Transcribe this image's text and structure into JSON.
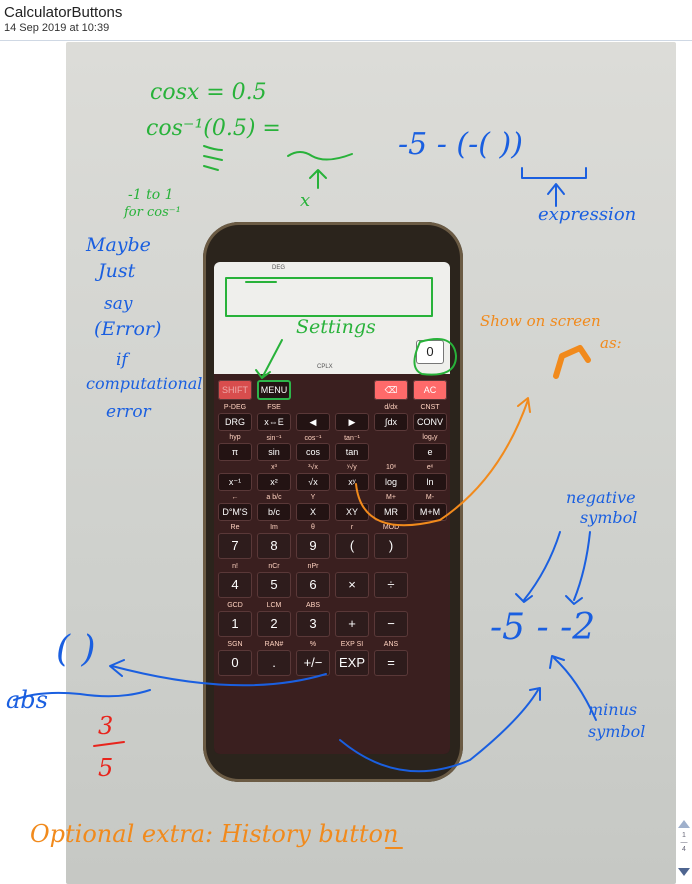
{
  "header": {
    "title": "CalculatorButtons",
    "date": "14 Sep 2019 at 10:39"
  },
  "pager": {
    "current": "1",
    "total": "4"
  },
  "annotations": {
    "cos_eq": "cosx = 0.5",
    "arccos": "cos⁻¹(0.5) =",
    "x_label": "x",
    "range": "-1 to 1",
    "range2": "for cos⁻¹",
    "expr": "-5 - (-(       ))",
    "expression": "expression",
    "maybe": "Maybe",
    "just": "Just",
    "say": "say",
    "error": "(Error)",
    "if": "if",
    "computational": "computational",
    "error2": "error",
    "settings": "Settings",
    "show_on_screen": "Show on screen",
    "as": "as:",
    "negative_symbol": "negative",
    "symbol1": "symbol",
    "neg_expr": "-5 - -2",
    "minus_symbol": "minus",
    "symbol2": "symbol",
    "abs_paren": "(     )",
    "abs": "abs",
    "frac_num": "3",
    "frac_den": "5",
    "optional": "Optional extra: History button"
  },
  "calculator": {
    "deg": "DEG",
    "cplx": "CPLX",
    "display_value": "0",
    "top_row": [
      {
        "label": "SHIFT",
        "style": "shift"
      },
      {
        "label": "MENU",
        "style": "menu"
      },
      {
        "label": "⌫",
        "style": "pink"
      },
      {
        "label": "AC",
        "style": "pink"
      }
    ],
    "rows": [
      {
        "sec": [
          "P-DEG",
          "FSE",
          "",
          "",
          "d/dx",
          "CNST"
        ],
        "keys": [
          "DRG",
          "x⇔E",
          "◀",
          "▶",
          "∫dx",
          "CONV"
        ]
      },
      {
        "sec": [
          "hyp",
          "sin⁻¹",
          "cos⁻¹",
          "tan⁻¹",
          "",
          "logₓy"
        ],
        "keys": [
          "π",
          "sin",
          "cos",
          "tan",
          "",
          "e"
        ]
      },
      {
        "sec": [
          "",
          "x³",
          "³√x",
          "ʸ√y",
          "10ˣ",
          "eˣ"
        ],
        "keys": [
          "x⁻¹",
          "x²",
          "√x",
          "xʸ",
          "log",
          "ln"
        ]
      },
      {
        "sec": [
          "←",
          "a b/c",
          "Y",
          "",
          "M+",
          "M-"
        ],
        "keys": [
          "D°M'S",
          "b/c",
          "X",
          "XY",
          "MR",
          "M+M"
        ]
      },
      {
        "sec": [
          "Re",
          "Im",
          "θ",
          "r",
          "MOD",
          ""
        ],
        "keys": [
          "7",
          "8",
          "9",
          "(",
          ")",
          ""
        ]
      },
      {
        "sec": [
          "n!",
          "nCr",
          "nPr",
          "",
          "",
          ""
        ],
        "keys": [
          "4",
          "5",
          "6",
          "×",
          "÷",
          ""
        ]
      },
      {
        "sec": [
          "GCD",
          "LCM",
          "ABS",
          "",
          "",
          ""
        ],
        "keys": [
          "1",
          "2",
          "3",
          "+",
          "−",
          ""
        ]
      },
      {
        "sec": [
          "SGN",
          "RAN#",
          "%",
          "EXP SI",
          "ANS",
          ""
        ],
        "keys": [
          "0",
          ".",
          "+/−",
          "EXP",
          "=",
          ""
        ]
      }
    ]
  }
}
